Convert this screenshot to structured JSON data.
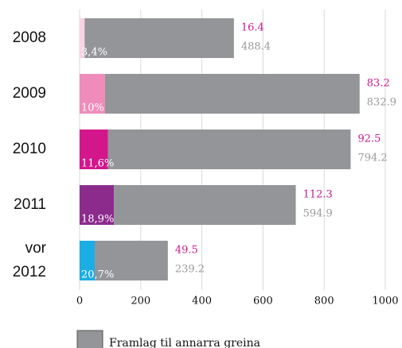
{
  "chart_data": {
    "type": "stacked-bar-horizontal",
    "categories": [
      "2008",
      "2009",
      "2010",
      "2011",
      "vor 2012"
    ],
    "series": [
      {
        "colors": [
          "#f9d3e3",
          "#f08cbb",
          "#d3168c",
          "#8d2b8d",
          "#1baee6"
        ],
        "label_color": "#c8168c",
        "values": [
          16.4,
          83.2,
          92.5,
          112.3,
          49.5
        ]
      },
      {
        "name": "Framlag til annarra greina",
        "color": "#939598",
        "label_color": "#999999",
        "values": [
          488.4,
          832.9,
          794.2,
          594.9,
          239.2
        ]
      }
    ],
    "percent_labels": [
      "3,4%",
      "10%",
      "11,6%",
      "18,9%",
      "20,7%"
    ],
    "xlim": [
      0,
      1000
    ],
    "xticks": [
      0,
      200,
      400,
      600,
      800,
      1000
    ],
    "grid": true
  }
}
